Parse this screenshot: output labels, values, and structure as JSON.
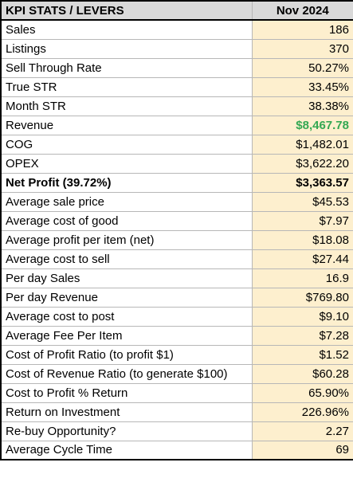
{
  "table": {
    "headers": [
      "KPI STATS / LEVERS",
      "Nov 2024"
    ],
    "rows": [
      {
        "label": "Sales",
        "value": "186"
      },
      {
        "label": "Listings",
        "value": "370"
      },
      {
        "label": "Sell Through Rate",
        "value": "50.27%"
      },
      {
        "label": "True STR",
        "value": "33.45%"
      },
      {
        "label": "Month STR",
        "value": "38.38%"
      },
      {
        "label": "Revenue",
        "value": "$8,467.78",
        "value_color": "#34a853"
      },
      {
        "label": "COG",
        "value": "$1,482.01"
      },
      {
        "label": "OPEX",
        "value": "$3,622.20"
      },
      {
        "label": "Net Profit (39.72%)",
        "value": "$3,363.57",
        "bold": true
      },
      {
        "label": "Average sale price",
        "value": "$45.53"
      },
      {
        "label": "Average cost of good",
        "value": "$7.97"
      },
      {
        "label": "Average profit per item (net)",
        "value": "$18.08"
      },
      {
        "label": "Average cost to sell",
        "value": "$27.44"
      },
      {
        "label": "Per day Sales",
        "value": "16.9"
      },
      {
        "label": "Per day Revenue",
        "value": "$769.80"
      },
      {
        "label": "Average cost to post",
        "value": "$9.10"
      },
      {
        "label": "Average Fee Per Item",
        "value": "$7.28"
      },
      {
        "label": "Cost of Profit Ratio (to profit $1)",
        "value": "$1.52"
      },
      {
        "label": "Cost of Revenue Ratio (to generate $100)",
        "value": "$60.28"
      },
      {
        "label": "Cost to Profit % Return",
        "value": "65.90%"
      },
      {
        "label": "Return on Investment",
        "value": "226.96%"
      },
      {
        "label": "Re-buy Opportunity?",
        "value": "2.27"
      },
      {
        "label": "Average Cycle Time",
        "value": "69"
      }
    ]
  },
  "colors": {
    "header_bg": "#d9d9d9",
    "value_bg": "#fdefce",
    "revenue_green": "#34a853"
  }
}
